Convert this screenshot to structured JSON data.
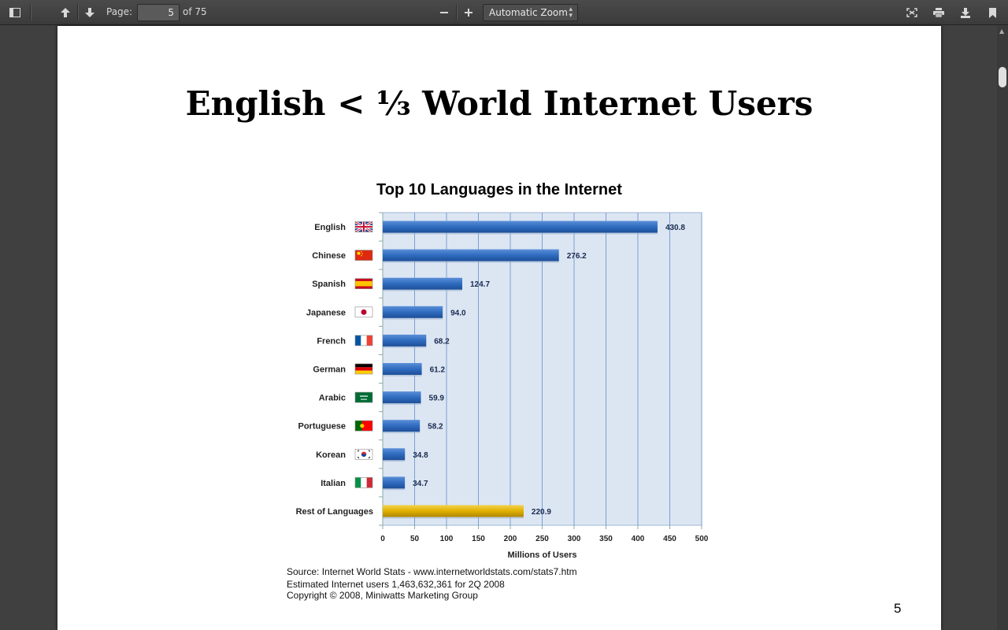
{
  "toolbar": {
    "page_label": "Page:",
    "page_value": "5",
    "page_count": "of 75",
    "zoom_minus": "—",
    "zoom_plus": "+",
    "zoom_value": "Automatic Zoom"
  },
  "slide": {
    "title": "English < ⅓ World Internet Users",
    "page_number": "5",
    "source_lines": [
      "Source: Internet World Stats - www.internetworldstats.com/stats7.htm",
      "Estimated Internet users 1,463,632,361 for 2Q 2008",
      "Copyright © 2008, Miniwatts Marketing Group"
    ]
  },
  "chart_data": {
    "type": "bar",
    "orientation": "horizontal",
    "title": "Top 10 Languages in the Internet",
    "xlabel": "Millions of Users",
    "ylabel": "",
    "xlim": [
      0,
      500
    ],
    "xticks": [
      0,
      50,
      100,
      150,
      200,
      250,
      300,
      350,
      400,
      450,
      500
    ],
    "grid": true,
    "categories": [
      "English",
      "Chinese",
      "Spanish",
      "Japanese",
      "French",
      "German",
      "Arabic",
      "Portuguese",
      "Korean",
      "Italian",
      "Rest of Languages"
    ],
    "values": [
      430.8,
      276.2,
      124.7,
      94.0,
      68.2,
      61.2,
      59.9,
      58.2,
      34.8,
      34.7,
      220.9
    ],
    "value_labels": [
      "430.8",
      "276.2",
      "124.7",
      "94.0",
      "68.2",
      "61.2",
      "59.9",
      "58.2",
      "34.8",
      "34.7",
      "220.9"
    ],
    "flags": [
      "uk-flag",
      "china-flag",
      "spain-flag",
      "japan-flag",
      "france-flag",
      "germany-flag",
      "saudi-flag",
      "portugal-flag",
      "korea-flag",
      "italy-flag",
      ""
    ],
    "colors": {
      "bar": "#2f6bbf",
      "bar_highlight": "#e0b000",
      "plot_bg": "#dce6f3",
      "grid": "#7aa0d0",
      "label": "#1a2a50"
    }
  }
}
